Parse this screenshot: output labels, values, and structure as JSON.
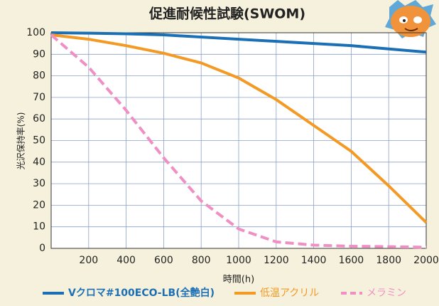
{
  "chart_data": {
    "type": "line",
    "title": "促進耐候性試験(SWOM)",
    "x_label": "時間(h)",
    "y_label": "光沢保持率(%)",
    "x": [
      0,
      200,
      400,
      600,
      800,
      1000,
      1200,
      1400,
      1600,
      1800,
      2000
    ],
    "series": [
      {
        "name": "Vクロマ#100ECO-LB(全艶白)",
        "color": "#1a6fb5",
        "dash": false,
        "values": [
          100,
          99.8,
          99.5,
          99,
          98,
          97,
          96,
          95,
          94,
          92.5,
          91
        ]
      },
      {
        "name": "低温アクリル",
        "color": "#f39a25",
        "dash": false,
        "values": [
          99,
          97,
          94,
          90.5,
          86,
          79,
          69,
          57,
          45,
          29,
          12
        ]
      },
      {
        "name": "メラミン",
        "color": "#ef8fc4",
        "dash": true,
        "values": [
          99,
          84,
          64,
          42,
          22,
          9,
          3,
          1.5,
          1,
          0.8,
          0.5
        ]
      }
    ],
    "xlim": [
      0,
      2000
    ],
    "xticks": [
      200,
      400,
      600,
      800,
      1000,
      1200,
      1400,
      1600,
      1800,
      2000
    ],
    "ylim": [
      0,
      100
    ],
    "yticks": [
      0,
      10,
      20,
      30,
      40,
      50,
      60,
      70,
      80,
      90,
      100
    ],
    "grid": true
  }
}
